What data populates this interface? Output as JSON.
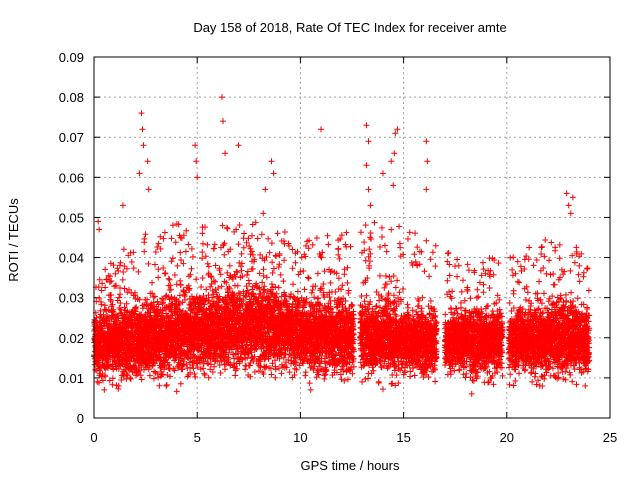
{
  "chart_data": {
    "type": "scatter",
    "title": "Day 158 of 2018, Rate Of TEC Index for receiver amte",
    "xlabel": "GPS time / hours",
    "ylabel": "ROTI / TECUs",
    "xlim": [
      0,
      25
    ],
    "ylim": [
      0,
      0.09
    ],
    "xticks": [
      0,
      5,
      10,
      15,
      20,
      25
    ],
    "xtick_labels": [
      "0",
      "5",
      "10",
      "15",
      "20",
      "25"
    ],
    "yticks": [
      0,
      0.01,
      0.02,
      0.03,
      0.04,
      0.05,
      0.06,
      0.07,
      0.08,
      0.09
    ],
    "ytick_labels": [
      "0",
      "0.01",
      "0.02",
      "0.03",
      "0.04",
      "0.05",
      "0.06",
      "0.07",
      "0.08",
      "0.09"
    ],
    "grid": true,
    "marker": "+",
    "color": "#ff0000",
    "data_gaps_hours": [
      [
        12.6,
        12.9
      ],
      [
        16.6,
        17.0
      ],
      [
        19.8,
        20.1
      ]
    ],
    "series": [
      {
        "name": "ROTI",
        "notable_points": [
          {
            "x": 2.3,
            "y": 0.076
          },
          {
            "x": 2.35,
            "y": 0.072
          },
          {
            "x": 2.4,
            "y": 0.068
          },
          {
            "x": 2.2,
            "y": 0.061
          },
          {
            "x": 2.6,
            "y": 0.064
          },
          {
            "x": 2.65,
            "y": 0.057
          },
          {
            "x": 4.9,
            "y": 0.068
          },
          {
            "x": 4.95,
            "y": 0.064
          },
          {
            "x": 5.0,
            "y": 0.06
          },
          {
            "x": 6.2,
            "y": 0.08
          },
          {
            "x": 6.25,
            "y": 0.074
          },
          {
            "x": 6.35,
            "y": 0.066
          },
          {
            "x": 7.0,
            "y": 0.068
          },
          {
            "x": 8.6,
            "y": 0.064
          },
          {
            "x": 8.7,
            "y": 0.061
          },
          {
            "x": 8.3,
            "y": 0.057
          },
          {
            "x": 8.2,
            "y": 0.051
          },
          {
            "x": 11.0,
            "y": 0.072
          },
          {
            "x": 13.2,
            "y": 0.073
          },
          {
            "x": 13.3,
            "y": 0.069
          },
          {
            "x": 13.2,
            "y": 0.063
          },
          {
            "x": 13.3,
            "y": 0.057
          },
          {
            "x": 13.4,
            "y": 0.053
          },
          {
            "x": 14.0,
            "y": 0.061
          },
          {
            "x": 14.6,
            "y": 0.071
          },
          {
            "x": 14.7,
            "y": 0.072
          },
          {
            "x": 14.55,
            "y": 0.066
          },
          {
            "x": 14.4,
            "y": 0.064
          },
          {
            "x": 14.5,
            "y": 0.058
          },
          {
            "x": 16.1,
            "y": 0.069
          },
          {
            "x": 16.15,
            "y": 0.064
          },
          {
            "x": 16.1,
            "y": 0.057
          },
          {
            "x": 22.9,
            "y": 0.056
          },
          {
            "x": 23.2,
            "y": 0.055
          },
          {
            "x": 23.0,
            "y": 0.053
          },
          {
            "x": 23.1,
            "y": 0.051
          },
          {
            "x": 0.2,
            "y": 0.049
          },
          {
            "x": 0.25,
            "y": 0.047
          },
          {
            "x": 1.4,
            "y": 0.053
          },
          {
            "x": 0.5,
            "y": 0.007
          },
          {
            "x": 1.2,
            "y": 0.008
          },
          {
            "x": 3.5,
            "y": 0.008
          },
          {
            "x": 10.5,
            "y": 0.007
          },
          {
            "x": 13.8,
            "y": 0.009
          },
          {
            "x": 18.3,
            "y": 0.006
          },
          {
            "x": 21.6,
            "y": 0.008
          },
          {
            "x": 23.8,
            "y": 0.008
          }
        ],
        "density_profile": [
          {
            "hour": 0,
            "base": 0.018,
            "spread": 0.008,
            "max": 0.035
          },
          {
            "hour": 2,
            "base": 0.019,
            "spread": 0.009,
            "max": 0.045
          },
          {
            "hour": 4,
            "base": 0.021,
            "spread": 0.01,
            "max": 0.05
          },
          {
            "hour": 6,
            "base": 0.022,
            "spread": 0.01,
            "max": 0.048
          },
          {
            "hour": 8,
            "base": 0.023,
            "spread": 0.011,
            "max": 0.05
          },
          {
            "hour": 10,
            "base": 0.021,
            "spread": 0.009,
            "max": 0.045
          },
          {
            "hour": 12,
            "base": 0.02,
            "spread": 0.009,
            "max": 0.046
          },
          {
            "hour": 14,
            "base": 0.02,
            "spread": 0.009,
            "max": 0.05
          },
          {
            "hour": 16,
            "base": 0.019,
            "spread": 0.008,
            "max": 0.045
          },
          {
            "hour": 18,
            "base": 0.019,
            "spread": 0.008,
            "max": 0.04
          },
          {
            "hour": 20,
            "base": 0.019,
            "spread": 0.008,
            "max": 0.04
          },
          {
            "hour": 22,
            "base": 0.02,
            "spread": 0.009,
            "max": 0.045
          },
          {
            "hour": 24,
            "base": 0.019,
            "spread": 0.008,
            "max": 0.042
          }
        ]
      }
    ]
  }
}
